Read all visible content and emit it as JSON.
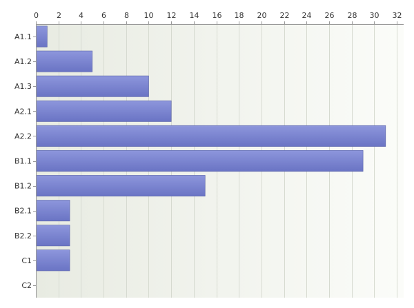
{
  "chart_data": {
    "type": "bar",
    "orientation": "horizontal",
    "title": "",
    "xlabel": "",
    "ylabel": "",
    "categories": [
      "A1.1",
      "A1.2",
      "A1.3",
      "A2.1",
      "A2.2",
      "B1.1",
      "B1.2",
      "B2.1",
      "B2.2",
      "C1",
      "C2"
    ],
    "values": [
      1,
      5,
      10,
      12,
      31,
      29,
      15,
      3,
      3,
      3,
      0
    ],
    "xlim": [
      0,
      32.6
    ],
    "x_ticks": [
      0,
      2,
      4,
      6,
      8,
      10,
      12,
      14,
      16,
      18,
      20,
      22,
      24,
      26,
      28,
      30,
      32
    ],
    "x_tick_labels": [
      "0",
      "2",
      "4",
      "6",
      "8",
      "10",
      "12",
      "14",
      "16",
      "18",
      "20",
      "22",
      "24",
      "26",
      "28",
      "30",
      "32"
    ],
    "x_axis_position": "top",
    "grid": true,
    "legend": "none",
    "colors": {
      "bar_top": "#8d96dc",
      "bar_bottom": "#6a74c4",
      "bar_edge": "#5a63a8",
      "plot_bg_left": "#e8ebe2",
      "plot_bg_right": "#fbfcf9",
      "grid": "#d6dad0",
      "axis": "#999999"
    }
  }
}
